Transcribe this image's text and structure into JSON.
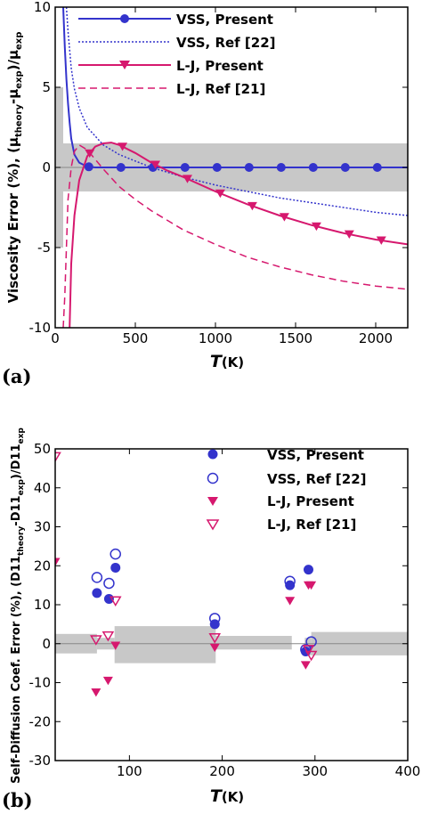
{
  "chart_data": [
    {
      "type": "line",
      "panel_label": "(a)",
      "ylabel_main": "Viscosity Error (%), (μ",
      "ylabel_sub1": "theory",
      "ylabel_mid": "-μ",
      "ylabel_sub2": "exp",
      "ylabel_close": ")/μ",
      "ylabel_sub3": "exp",
      "xlabel_var": "T",
      "xlabel_unit": "(K)",
      "xlim": [
        0,
        2200
      ],
      "ylim": [
        -10,
        10
      ],
      "xticks": [
        0,
        500,
        1000,
        1500,
        2000
      ],
      "yticks": [
        -10,
        -5,
        0,
        5,
        10
      ],
      "uncertainty_bands": [
        {
          "x": [
            0,
            50
          ],
          "y": [
            -5,
            5
          ]
        },
        {
          "x": [
            50,
            2200
          ],
          "y": [
            -1.5,
            1.5
          ]
        }
      ],
      "zero_line": 0,
      "legend_position": "top-right",
      "series": [
        {
          "name": "VSS, Present",
          "color": "#3333cc",
          "line": "solid",
          "marker": "circle",
          "x": [
            50,
            60,
            70,
            80,
            90,
            100,
            120,
            150,
            200,
            250,
            300,
            400,
            600,
            800,
            1000,
            1200,
            1400,
            1600,
            1800,
            2000,
            2200
          ],
          "y": [
            10,
            7.5,
            5.5,
            4,
            2.8,
            1.8,
            0.8,
            0.3,
            0.05,
            0,
            0,
            0,
            0,
            0,
            0,
            0,
            0,
            0,
            0,
            0,
            0
          ],
          "marker_x": [
            210,
            410,
            610,
            810,
            1010,
            1210,
            1410,
            1610,
            1810,
            2010
          ]
        },
        {
          "name": "VSS, Ref [22]",
          "color": "#3333cc",
          "line": "dotted",
          "marker": "none",
          "x": [
            70,
            80,
            100,
            120,
            150,
            200,
            300,
            400,
            600,
            800,
            1000,
            1200,
            1400,
            1600,
            1800,
            2000,
            2200
          ],
          "y": [
            10,
            8.5,
            6.2,
            4.9,
            3.7,
            2.5,
            1.4,
            0.8,
            0,
            -0.6,
            -1.1,
            -1.5,
            -1.9,
            -2.2,
            -2.5,
            -2.8,
            -3.0
          ]
        },
        {
          "name": "L-J, Present",
          "color": "#d6186e",
          "line": "solid",
          "marker": "triangle-down",
          "x": [
            90,
            100,
            120,
            150,
            200,
            250,
            300,
            350,
            400,
            500,
            600,
            700,
            800,
            1000,
            1200,
            1400,
            1600,
            1800,
            2000,
            2200
          ],
          "y": [
            -10,
            -6,
            -3,
            -0.8,
            0.7,
            1.3,
            1.5,
            1.55,
            1.4,
            0.9,
            0.3,
            -0.2,
            -0.6,
            -1.5,
            -2.3,
            -3.0,
            -3.6,
            -4.1,
            -4.5,
            -4.8
          ],
          "marker_x": [
            215,
            420,
            625,
            825,
            1030,
            1230,
            1430,
            1630,
            1835,
            2035
          ]
        },
        {
          "name": "L-J, Ref [21]",
          "color": "#d6186e",
          "line": "dashed",
          "marker": "none",
          "x": [
            50,
            60,
            70,
            80,
            100,
            120,
            150,
            200,
            250,
            300,
            400,
            500,
            600,
            800,
            1000,
            1200,
            1400,
            1600,
            1800,
            2000,
            2200
          ],
          "y": [
            -10,
            -8,
            -5,
            -2,
            0,
            1,
            1.4,
            1.1,
            0.5,
            -0.1,
            -1.2,
            -2.0,
            -2.7,
            -3.9,
            -4.8,
            -5.6,
            -6.2,
            -6.7,
            -7.1,
            -7.4,
            -7.6
          ]
        }
      ]
    },
    {
      "type": "scatter",
      "panel_label": "(b)",
      "ylabel_main": "Self-Diffusion Coef. Error (%), (D11",
      "ylabel_sub1": "theory",
      "ylabel_mid": "-D11",
      "ylabel_sub2": "exp",
      "ylabel_close": ")/D11",
      "ylabel_sub3": "exp",
      "xlabel_var": "T",
      "xlabel_unit": "(K)",
      "xlim": [
        20,
        400
      ],
      "ylim": [
        -30,
        50
      ],
      "xticks": [
        100,
        200,
        300,
        400
      ],
      "yticks": [
        -30,
        -20,
        -10,
        0,
        10,
        20,
        30,
        40,
        50
      ],
      "uncertainty_bands": [
        {
          "x": [
            20,
            65
          ],
          "y": [
            -2.5,
            2.5
          ]
        },
        {
          "x": [
            65,
            84
          ],
          "y": [
            -1.5,
            1.5
          ]
        },
        {
          "x": [
            84,
            193
          ],
          "y": [
            -5,
            4.5
          ]
        },
        {
          "x": [
            193,
            275
          ],
          "y": [
            -1.5,
            2
          ]
        },
        {
          "x": [
            289,
            296
          ],
          "y": [
            -3,
            1.5
          ]
        },
        {
          "x": [
            296,
            400
          ],
          "y": [
            -3,
            3
          ]
        }
      ],
      "zero_line": 0,
      "legend_position": "top-right",
      "series": [
        {
          "name": "VSS, Present",
          "color": "#3333cc",
          "marker": "circle-filled",
          "x": [
            65,
            78,
            85,
            192,
            273,
            290,
            293
          ],
          "y": [
            13,
            11.5,
            19.5,
            5,
            15,
            -2,
            19
          ]
        },
        {
          "name": "VSS, Ref [22]",
          "color": "#3333cc",
          "marker": "circle-open",
          "x": [
            65,
            78,
            85,
            192,
            273,
            290,
            296
          ],
          "y": [
            17,
            15.5,
            23,
            6.5,
            16,
            -1.5,
            0.5
          ]
        },
        {
          "name": "L-J, Present",
          "color": "#d6186e",
          "marker": "triangle-filled",
          "x": [
            20,
            64,
            77,
            85,
            192,
            273,
            290,
            293,
            296
          ],
          "y": [
            21,
            -12.5,
            -9.5,
            -0.5,
            -1,
            11,
            -5.5,
            15,
            15
          ]
        },
        {
          "name": "L-J, Ref [21]",
          "color": "#d6186e",
          "marker": "triangle-open",
          "x": [
            20,
            64,
            77,
            85,
            192,
            293,
            296
          ],
          "y": [
            48,
            1,
            2,
            11,
            1.5,
            -1.5,
            -3
          ]
        }
      ]
    }
  ]
}
